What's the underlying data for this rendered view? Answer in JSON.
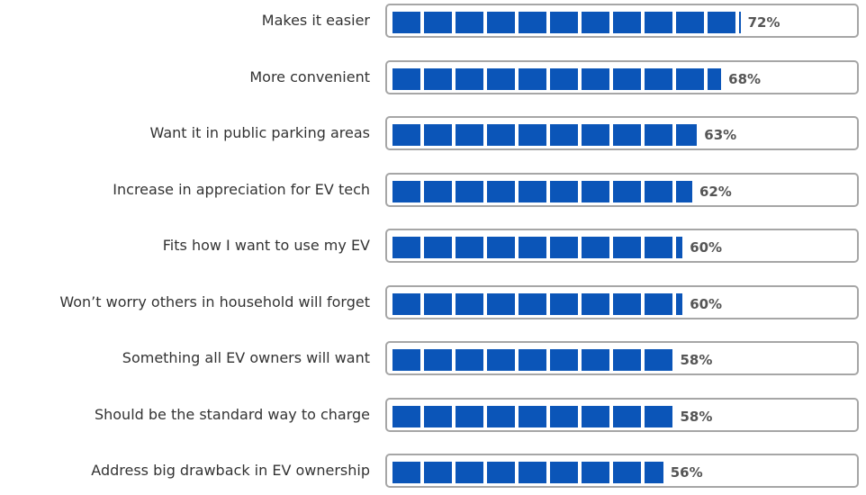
{
  "chart_data": {
    "type": "bar",
    "orientation": "horizontal",
    "categories": [
      "Makes it easier",
      "More  convenient",
      "Want it in public parking areas",
      "Increase in appreciation for EV tech",
      "Fits how I want to use my EV",
      "Won’t worry others in household will forget",
      "Something all EV owners will want",
      "Should be the standard way to charge",
      "Address big drawback in EV ownership"
    ],
    "values": [
      72,
      68,
      63,
      62,
      60,
      60,
      58,
      58,
      56
    ],
    "value_labels": [
      "72%",
      "68%",
      "63%",
      "62%",
      "60%",
      "60%",
      "58%",
      "58%",
      "56%"
    ],
    "unit": "%",
    "xlim": [
      0,
      100
    ],
    "title": "",
    "xlabel": "",
    "ylabel": "",
    "grid": false,
    "legend": "none",
    "colors": {
      "bar": "#0b55b8",
      "track_border": "#a6a6a6",
      "label_text": "#333333",
      "value_text": "#555555"
    }
  }
}
